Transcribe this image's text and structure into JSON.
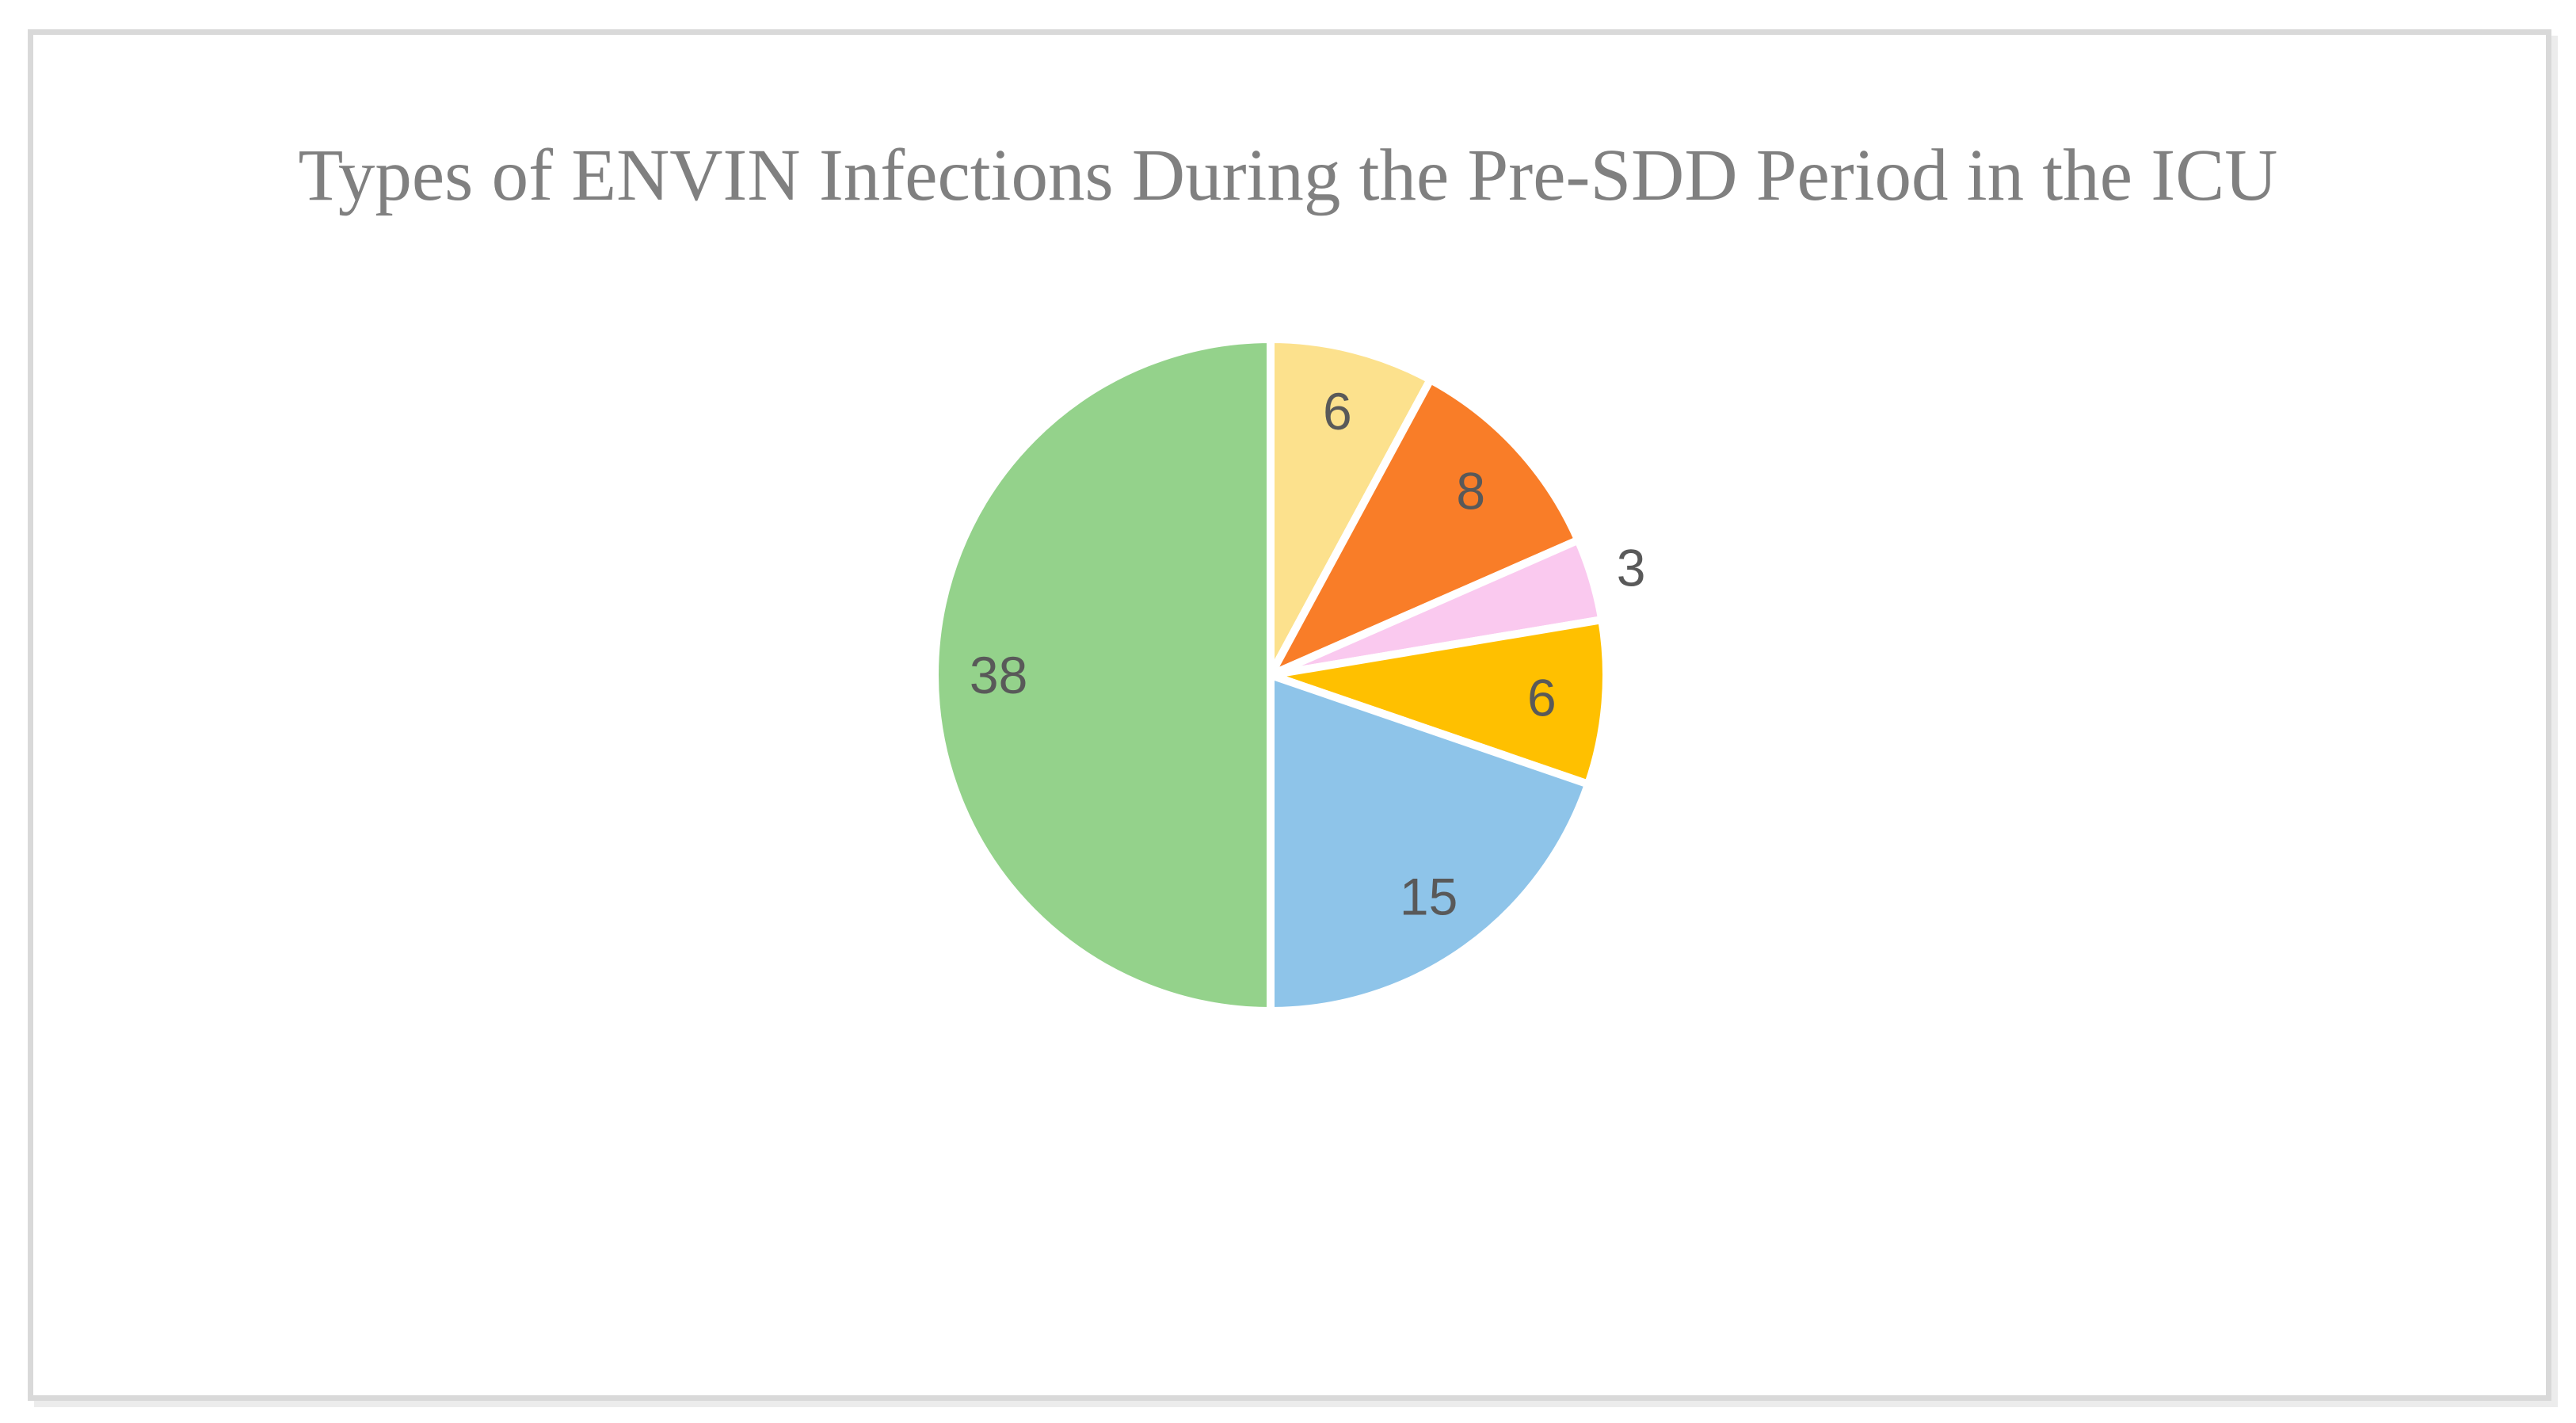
{
  "chart_data": {
    "type": "pie",
    "title": "Types of ENVIN Infections During the Pre-SDD Period in the ICU",
    "values": [
      6,
      8,
      3,
      6,
      15,
      38
    ],
    "data_labels": [
      "6",
      "8",
      "3",
      "6",
      "15",
      "38"
    ],
    "slice_colors": [
      "#FCE18D",
      "#F97D28",
      "#FAC9EF",
      "#FFC000",
      "#8EC4E9",
      "#94D28B"
    ],
    "label_placements": [
      "inside",
      "inside",
      "outside",
      "inside",
      "inside",
      "inside"
    ],
    "start_angle_deg": 0,
    "direction": "clockwise",
    "legend": "none",
    "slice_border_color": "#FFFFFF",
    "data_label_color": "#595959",
    "title_color": "#808080",
    "frame_border_color": "#D9D9D9",
    "background_color": "#FFFFFF"
  }
}
